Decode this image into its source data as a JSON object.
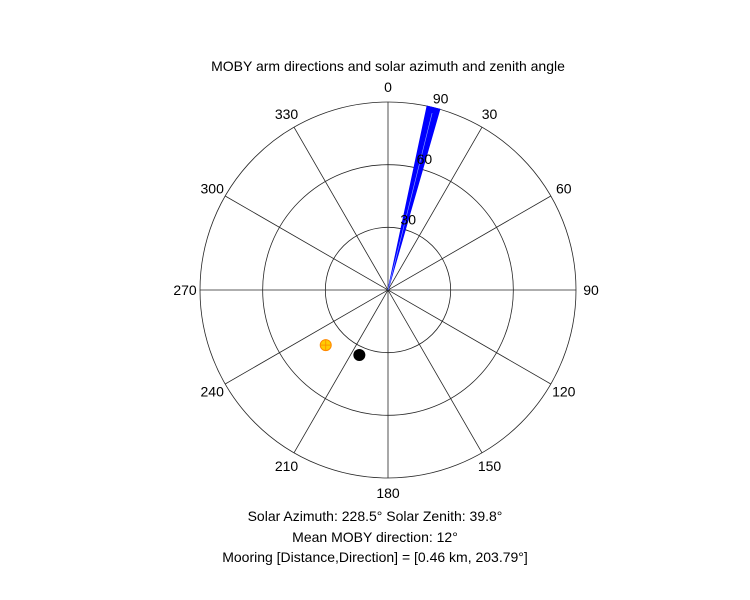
{
  "chart_data": {
    "type": "polar",
    "title": "MOBY arm directions and solar azimuth and zenith angle",
    "theta_zero_location": "top",
    "theta_direction": "clockwise",
    "theta_ticks": [
      0,
      30,
      60,
      90,
      120,
      150,
      180,
      210,
      240,
      270,
      300,
      330
    ],
    "r_ticks": [
      30,
      60,
      90
    ],
    "r_lim": [
      0,
      90
    ],
    "grid": true,
    "series": [
      {
        "kind": "wedge",
        "color": "#0000ff",
        "theta_range": [
          12,
          16
        ],
        "r": 90
      },
      {
        "kind": "marker",
        "color": "#000000",
        "theta": 203.79,
        "r": 34
      },
      {
        "kind": "sun-marker",
        "color": "#ffcc00",
        "edge_color": "#ff8800",
        "theta": 228.5,
        "r": 39.8
      }
    ]
  },
  "captions": {
    "line1": "Solar Azimuth: 228.5°    Solar Zenith: 39.8°",
    "line2": "Mean MOBY direction: 12°",
    "line3": "Mooring [Distance,Direction] = [0.46 km, 203.79°]"
  }
}
